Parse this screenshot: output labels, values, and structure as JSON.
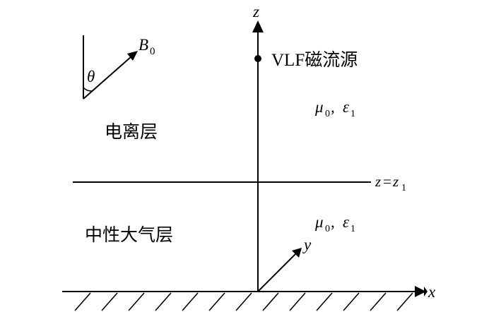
{
  "axes": {
    "z_label": "z",
    "x_label": "x",
    "y_label": "y"
  },
  "source": {
    "label": "VLF磁流源"
  },
  "magnetic_field": {
    "vector_symbol": "B",
    "vector_subscript": "0",
    "angle_symbol": "θ"
  },
  "boundary": {
    "label_var": "z",
    "label_eq": "=",
    "label_rhs": "z",
    "label_sub": "1"
  },
  "upper_region": {
    "name": "电离层",
    "mu_symbol": "μ",
    "mu_sub": "0",
    "separator": ", ",
    "eps_symbol": "ε",
    "eps_sub": "1"
  },
  "lower_region": {
    "name": "中性大气层",
    "mu_symbol": "μ",
    "mu_sub": "0",
    "separator": ", ",
    "eps_symbol": "ε",
    "eps_sub": "1"
  }
}
